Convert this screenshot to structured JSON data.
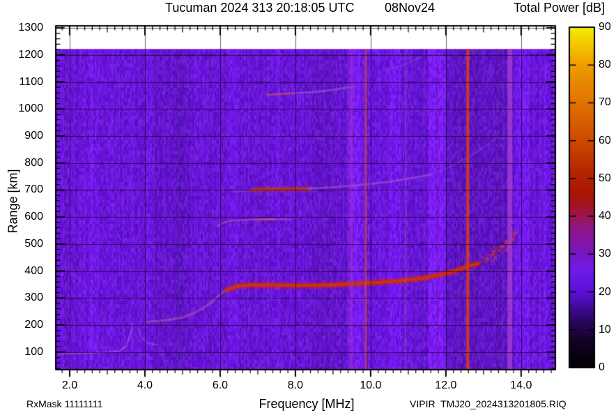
{
  "header": {
    "title": "Tucuman 2024 313 20:18:05 UTC",
    "date": "08Nov24",
    "colorbar_title": "Total Power [dB]"
  },
  "footer": {
    "rx_mask": "RxMask 11111111",
    "file": "VIPIR  TMJ20_2024313201805.RIQ"
  },
  "chart_data": {
    "type": "heatmap",
    "title": "Tucuman 2024 313 20:18:05 UTC",
    "date_label": "08Nov24",
    "x_axis": {
      "label": "Frequency [MHz]",
      "min": 1.63,
      "max": 14.91,
      "major_ticks": [
        2,
        4,
        6,
        8,
        10,
        12,
        14
      ],
      "tick_labels": [
        "2.0",
        "4.0",
        "6.0",
        "8.0",
        "10.0",
        "12.0",
        "14.0"
      ],
      "minor_step": 0.2
    },
    "y_axis": {
      "label": "Range [km]",
      "min": 35,
      "max": 1308,
      "major_ticks": [
        100,
        200,
        300,
        400,
        500,
        600,
        700,
        800,
        900,
        1000,
        1100,
        1200,
        1300
      ],
      "tick_labels": [
        "100",
        "200",
        "300",
        "400",
        "500",
        "600",
        "700",
        "800",
        "900",
        "1000",
        "1100",
        "1200",
        "1300"
      ],
      "minor_step": 20
    },
    "colorbar": {
      "title": "Total Power [dB]",
      "min": 0,
      "max": 90,
      "tick_values": [
        0,
        10,
        20,
        30,
        40,
        50,
        60,
        70,
        80,
        90
      ],
      "tick_labels": [
        "0",
        "10",
        "20",
        "30",
        "40",
        "50",
        "60",
        "70",
        "80",
        "90"
      ],
      "gradient": [
        [
          0,
          "#000000"
        ],
        [
          7,
          "#140226"
        ],
        [
          13,
          "#2e0668"
        ],
        [
          20,
          "#5b10d8"
        ],
        [
          26,
          "#6f1ce8"
        ],
        [
          31,
          "#7b15b8"
        ],
        [
          36,
          "#8d1690"
        ],
        [
          40,
          "#9d1550"
        ],
        [
          45,
          "#a81408"
        ],
        [
          52,
          "#b62600"
        ],
        [
          60,
          "#cd4a00"
        ],
        [
          70,
          "#e07200"
        ],
        [
          80,
          "#ef9d00"
        ],
        [
          90,
          "#f5ee00"
        ]
      ]
    },
    "grid_color": "rgba(0,0,0,0.6)",
    "background": {
      "base_color_rgb": [
        106,
        18,
        222
      ],
      "data_top_km": 1222,
      "bands": [
        {
          "f1": 2.55,
          "f2": 2.8,
          "lighten": 0.1
        },
        {
          "f1": 4.0,
          "f2": 4.15,
          "lighten": 0.08
        },
        {
          "f1": 4.2,
          "f2": 5.2,
          "lighten": -0.06
        },
        {
          "f1": 6.3,
          "f2": 6.48,
          "lighten": 0.08
        },
        {
          "f1": 7.35,
          "f2": 7.55,
          "lighten": 0.06
        },
        {
          "f1": 8.55,
          "f2": 9.3,
          "lighten": -0.05
        },
        {
          "f1": 9.35,
          "f2": 9.8,
          "lighten": 0.14
        },
        {
          "f1": 10.4,
          "f2": 10.8,
          "lighten": 0.1
        },
        {
          "f1": 11.5,
          "f2": 11.97,
          "lighten": 0.16
        },
        {
          "f1": 12.0,
          "f2": 13.6,
          "lighten": -0.1
        },
        {
          "f1": 13.85,
          "f2": 14.2,
          "lighten": 0.12
        },
        {
          "f1": 14.42,
          "f2": 14.68,
          "lighten": 0.06
        }
      ]
    },
    "rfi_lines": [
      {
        "f": 9.49,
        "width": 3,
        "color": "#9a35b8",
        "alpha": 0.7
      },
      {
        "f": 9.87,
        "width": 3,
        "color": "#c24558",
        "alpha": 0.8
      },
      {
        "f": 10.93,
        "width": 2,
        "color": "#b468c0",
        "alpha": 0.38
      },
      {
        "f": 12.58,
        "width": 4,
        "color": "#d63a18",
        "alpha": 0.95
      },
      {
        "f": 13.7,
        "width": 7,
        "color": "#a83fd0",
        "alpha": 0.75
      }
    ],
    "traces": [
      {
        "name": "e-region-echo",
        "style": "solid",
        "color": "#b66ad8",
        "width": 2,
        "alpha": 0.55,
        "glow": false,
        "points": [
          [
            1.72,
            93
          ],
          [
            2.3,
            96
          ],
          [
            2.9,
            99
          ],
          [
            3.3,
            103
          ],
          [
            3.5,
            120
          ],
          [
            3.62,
            170
          ],
          [
            3.68,
            205
          ]
        ]
      },
      {
        "name": "e-region-cusp",
        "style": "solid",
        "color": "#b66ad8",
        "width": 2,
        "alpha": 0.4,
        "glow": false,
        "points": [
          [
            3.82,
            185
          ],
          [
            3.95,
            148
          ],
          [
            4.1,
            132
          ],
          [
            4.35,
            127
          ]
        ]
      },
      {
        "name": "f-region-leadin",
        "style": "solid",
        "color": "#c05f9a",
        "width": 3,
        "alpha": 0.5,
        "glow": false,
        "points": [
          [
            4.05,
            212
          ],
          [
            4.6,
            219
          ],
          [
            5.0,
            228
          ],
          [
            5.35,
            247
          ],
          [
            5.7,
            277
          ],
          [
            5.95,
            308
          ],
          [
            6.15,
            330
          ]
        ]
      },
      {
        "name": "f-region-echo",
        "style": "solid",
        "color": "#d22f05",
        "width": 4.5,
        "alpha": 1,
        "glow": true,
        "points": [
          [
            6.18,
            330
          ],
          [
            6.45,
            344
          ],
          [
            6.8,
            349
          ],
          [
            7.5,
            348
          ],
          [
            8.3,
            347
          ],
          [
            9.0,
            349
          ],
          [
            9.6,
            353
          ],
          [
            10.2,
            358
          ],
          [
            10.8,
            364
          ],
          [
            11.4,
            374
          ],
          [
            11.9,
            388
          ],
          [
            12.3,
            403
          ],
          [
            12.6,
            418
          ],
          [
            12.85,
            428
          ]
        ]
      },
      {
        "name": "f-region-spread-dots-1",
        "style": "dots",
        "color": "#cc3a10",
        "width": 4,
        "alpha": 0.85,
        "glow": false,
        "points": [
          [
            12.95,
            436
          ],
          [
            13.1,
            448
          ],
          [
            13.25,
            462
          ],
          [
            13.4,
            477
          ],
          [
            13.55,
            492
          ],
          [
            13.67,
            506
          ],
          [
            13.78,
            521
          ],
          [
            13.9,
            545
          ]
        ]
      },
      {
        "name": "f-region-spread-dots-2",
        "style": "dots",
        "color": "#c84a20",
        "width": 3,
        "alpha": 0.5,
        "glow": false,
        "points": [
          [
            13.0,
            425
          ],
          [
            13.2,
            440
          ],
          [
            13.4,
            458
          ],
          [
            13.6,
            478
          ],
          [
            13.75,
            495
          ]
        ]
      },
      {
        "name": "f-region-spread-dots-3",
        "style": "dots",
        "color": "#c84a20",
        "width": 3,
        "alpha": 0.45,
        "glow": false,
        "points": [
          [
            13.05,
            455
          ],
          [
            13.25,
            472
          ],
          [
            13.45,
            492
          ],
          [
            13.6,
            510
          ],
          [
            13.7,
            524
          ]
        ]
      },
      {
        "name": "second-hop-leadin",
        "style": "solid",
        "color": "#b060a0",
        "width": 2,
        "alpha": 0.35,
        "glow": false,
        "points": [
          [
            6.3,
            693
          ],
          [
            6.8,
            698
          ]
        ]
      },
      {
        "name": "second-hop-echo",
        "style": "solid",
        "color": "#c03420",
        "width": 4,
        "alpha": 0.9,
        "glow": true,
        "points": [
          [
            6.85,
            700
          ],
          [
            7.3,
            703
          ],
          [
            7.9,
            703
          ],
          [
            8.35,
            705
          ]
        ]
      },
      {
        "name": "second-hop-fade",
        "style": "solid",
        "color": "#a85cc8",
        "width": 3,
        "alpha": 0.55,
        "glow": false,
        "points": [
          [
            8.35,
            705
          ],
          [
            9.0,
            710
          ],
          [
            9.7,
            718
          ],
          [
            10.4,
            729
          ],
          [
            11.0,
            742
          ],
          [
            11.6,
            757
          ]
        ]
      },
      {
        "name": "second-hop-faint",
        "style": "solid",
        "color": "#9c55c0",
        "width": 2,
        "alpha": 0.4,
        "glow": false,
        "points": [
          [
            11.7,
            762
          ],
          [
            12.2,
            792
          ],
          [
            12.7,
            830
          ],
          [
            13.1,
            868
          ],
          [
            13.35,
            895
          ]
        ]
      },
      {
        "name": "third-hop-echo",
        "style": "solid",
        "color": "#c0506a",
        "width": 3,
        "alpha": 0.7,
        "glow": false,
        "points": [
          [
            7.25,
            1052
          ],
          [
            7.6,
            1056
          ],
          [
            7.95,
            1058
          ]
        ]
      },
      {
        "name": "third-hop-fade",
        "style": "solid",
        "color": "#a86ad8",
        "width": 3,
        "alpha": 0.5,
        "glow": false,
        "points": [
          [
            7.95,
            1058
          ],
          [
            8.6,
            1064
          ],
          [
            9.2,
            1075
          ],
          [
            9.55,
            1083
          ]
        ]
      },
      {
        "name": "third-hop-faint",
        "style": "solid",
        "color": "#9a60cc",
        "width": 2,
        "alpha": 0.35,
        "glow": false,
        "points": [
          [
            10.35,
            1140
          ],
          [
            10.9,
            1165
          ],
          [
            11.35,
            1192
          ]
        ]
      },
      {
        "name": "oblique-echo-590km",
        "style": "solid",
        "color": "#c05f9a",
        "width": 2.5,
        "alpha": 0.5,
        "glow": false,
        "points": [
          [
            5.92,
            566
          ],
          [
            6.05,
            578
          ],
          [
            6.3,
            586
          ],
          [
            6.8,
            590
          ],
          [
            7.3,
            592
          ],
          [
            7.9,
            591
          ]
        ]
      },
      {
        "name": "oblique-echo-590km-bright",
        "style": "solid",
        "color": "#c94f70",
        "width": 3,
        "alpha": 0.65,
        "glow": false,
        "points": [
          [
            6.9,
            590
          ],
          [
            7.45,
            592
          ]
        ]
      }
    ]
  }
}
